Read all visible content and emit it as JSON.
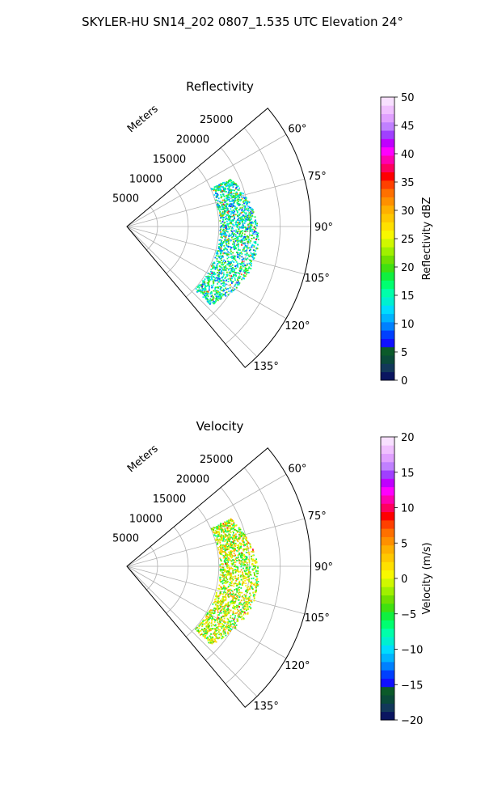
{
  "figure_title": "SKYLER-HU  SN14_202  0807_1.535 UTC Elevation 24°",
  "chart_data": [
    {
      "type": "polar-sector",
      "title": "Reflectivity",
      "range_label": "Meters",
      "range_ticks": [
        5000,
        10000,
        15000,
        20000,
        25000
      ],
      "range_tick_labels": [
        "5000",
        "10000",
        "15000",
        "20000",
        "25000"
      ],
      "range_max": 30000,
      "angle_range_deg": [
        50,
        140
      ],
      "angle_ticks": [
        60,
        75,
        90,
        105,
        120,
        135
      ],
      "angle_tick_labels": [
        "60°",
        "75°",
        "90°",
        "105°",
        "120°",
        "135°"
      ],
      "grid": true,
      "echo_band": {
        "azimuth_deg": [
          65,
          133
        ],
        "range_m": [
          13500,
          19500
        ],
        "typical_value_range": [
          8,
          22
        ]
      },
      "colorbar": {
        "label": "Reflectivity dBZ",
        "min": 0,
        "max": 50,
        "ticks": [
          0,
          5,
          10,
          15,
          20,
          25,
          30,
          35,
          40,
          45,
          50
        ],
        "tick_labels": [
          "0",
          "5",
          "10",
          "15",
          "20",
          "25",
          "30",
          "35",
          "40",
          "45",
          "50"
        ],
        "colors": [
          "#0a1560",
          "#12385a",
          "#0a4a3a",
          "#0b5a2a",
          "#1010ff",
          "#0040ff",
          "#0080ff",
          "#00b4ff",
          "#00dcff",
          "#00f0d0",
          "#00ffaa",
          "#00ff70",
          "#10f040",
          "#40e010",
          "#70e000",
          "#a0f000",
          "#d0f800",
          "#f8f800",
          "#ffe000",
          "#ffc800",
          "#ffb000",
          "#ff9000",
          "#ff7000",
          "#ff4000",
          "#ff0000",
          "#ff0060",
          "#ff00b0",
          "#ff00ff",
          "#c000ff",
          "#a040ff",
          "#c080ff",
          "#e0a0ff",
          "#f0c0ff",
          "#f8e0ff"
        ]
      }
    },
    {
      "type": "polar-sector",
      "title": "Velocity",
      "range_label": "Meters",
      "range_ticks": [
        5000,
        10000,
        15000,
        20000,
        25000
      ],
      "range_tick_labels": [
        "5000",
        "10000",
        "15000",
        "20000",
        "25000"
      ],
      "range_max": 30000,
      "angle_range_deg": [
        50,
        140
      ],
      "angle_ticks": [
        60,
        75,
        90,
        105,
        120,
        135
      ],
      "angle_tick_labels": [
        "60°",
        "75°",
        "90°",
        "105°",
        "120°",
        "135°"
      ],
      "grid": true,
      "echo_band": {
        "azimuth_deg": [
          65,
          133
        ],
        "range_m": [
          13500,
          19500
        ],
        "typical_value_range": [
          -7,
          5
        ]
      },
      "colorbar": {
        "label": "Velocity (m/s)",
        "min": -20,
        "max": 20,
        "ticks": [
          -20,
          -15,
          -10,
          -5,
          0,
          5,
          10,
          15,
          20
        ],
        "tick_labels": [
          "−20",
          "−15",
          "−10",
          "−5",
          "0",
          "5",
          "10",
          "15",
          "20"
        ],
        "colors": [
          "#0a1560",
          "#12385a",
          "#0a4a3a",
          "#0b5a2a",
          "#1010ff",
          "#0040ff",
          "#0080ff",
          "#00b4ff",
          "#00dcff",
          "#00f0d0",
          "#00ffaa",
          "#00ff70",
          "#10f040",
          "#40e010",
          "#70e000",
          "#a0f000",
          "#d0f800",
          "#f8f800",
          "#ffe000",
          "#ffc800",
          "#ffb000",
          "#ff9000",
          "#ff7000",
          "#ff4000",
          "#ff0000",
          "#ff0060",
          "#ff00b0",
          "#ff00ff",
          "#c000ff",
          "#a040ff",
          "#c080ff",
          "#e0a0ff",
          "#f0c0ff",
          "#f8e0ff"
        ]
      }
    }
  ]
}
